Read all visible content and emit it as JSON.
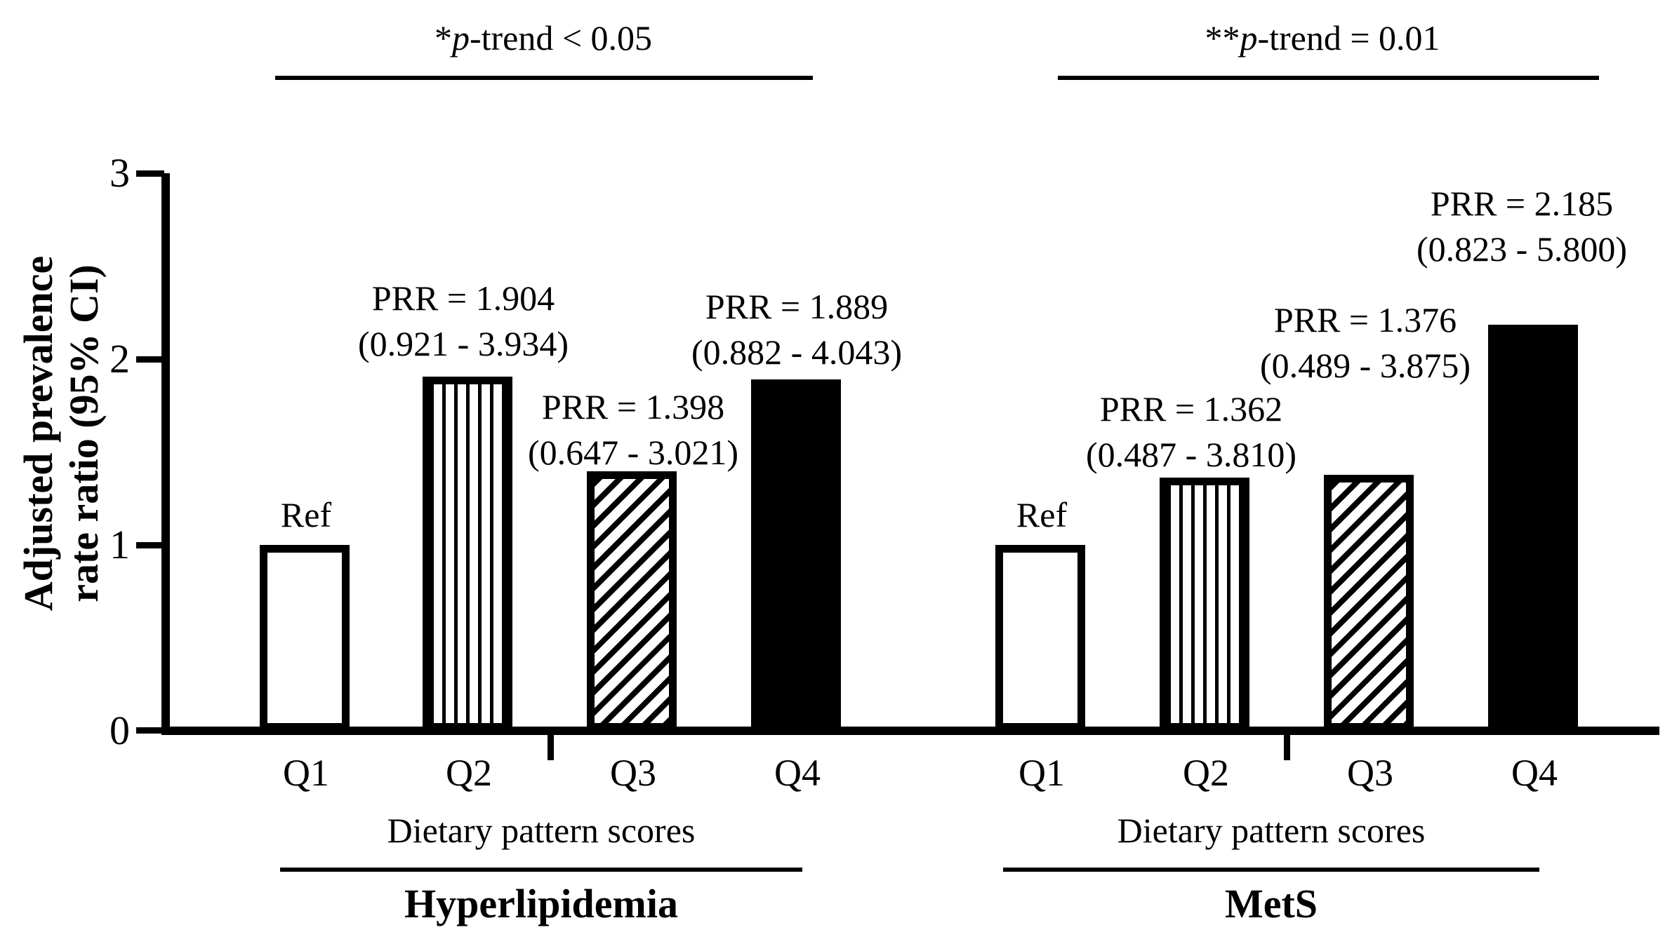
{
  "figure": {
    "y_axis": {
      "label_line1": "Adjusted prevalence",
      "label_line2": "rate ratio (95% CI)",
      "ticks": [
        "3",
        "2",
        "1",
        "0"
      ]
    },
    "annotations": {
      "left": {
        "stars": "*",
        "p": "p",
        "rest": "-trend < 0.05"
      },
      "right": {
        "stars": "**",
        "p": "p",
        "rest": "-trend = 0.01"
      }
    }
  },
  "chart_data": {
    "type": "bar",
    "title": "",
    "ylabel": "Adjusted prevalence rate ratio (95% CI)",
    "ylim": [
      0,
      3
    ],
    "yticks": [
      0,
      1,
      2,
      3
    ],
    "grid": "off",
    "legend": "none",
    "categories": [
      "Q1",
      "Q2",
      "Q3",
      "Q4"
    ],
    "groups": [
      {
        "title": "Hyperlipidemia",
        "xlabel": "Dietary pattern scores",
        "p_trend": "*p-trend < 0.05",
        "bars": [
          {
            "category": "Q1",
            "value": 1.0,
            "label": "Ref",
            "ci": "",
            "pattern": "white"
          },
          {
            "category": "Q2",
            "value": 1.904,
            "label": "PRR = 1.904",
            "ci": "(0.921 - 3.934)",
            "pattern": "vertical-stripes"
          },
          {
            "category": "Q3",
            "value": 1.398,
            "label": "PRR = 1.398",
            "ci": "(0.647 - 3.021)",
            "pattern": "diagonal-stripes"
          },
          {
            "category": "Q4",
            "value": 1.889,
            "label": "PRR = 1.889",
            "ci": "(0.882 - 4.043)",
            "pattern": "solid-black"
          }
        ]
      },
      {
        "title": "MetS",
        "xlabel": "Dietary pattern scores",
        "p_trend": "**p-trend = 0.01",
        "bars": [
          {
            "category": "Q1",
            "value": 1.0,
            "label": "Ref",
            "ci": "",
            "pattern": "white"
          },
          {
            "category": "Q2",
            "value": 1.362,
            "label": "PRR = 1.362",
            "ci": "(0.487 - 3.810)",
            "pattern": "vertical-stripes"
          },
          {
            "category": "Q3",
            "value": 1.376,
            "label": "PRR = 1.376",
            "ci": "(0.489 - 3.875)",
            "pattern": "diagonal-stripes"
          },
          {
            "category": "Q4",
            "value": 2.185,
            "label": "PRR = 2.185",
            "ci": "(0.823 - 5.800)",
            "pattern": "solid-black"
          }
        ]
      }
    ],
    "colors": {
      "foreground": "#000000",
      "background": "#ffffff"
    }
  }
}
